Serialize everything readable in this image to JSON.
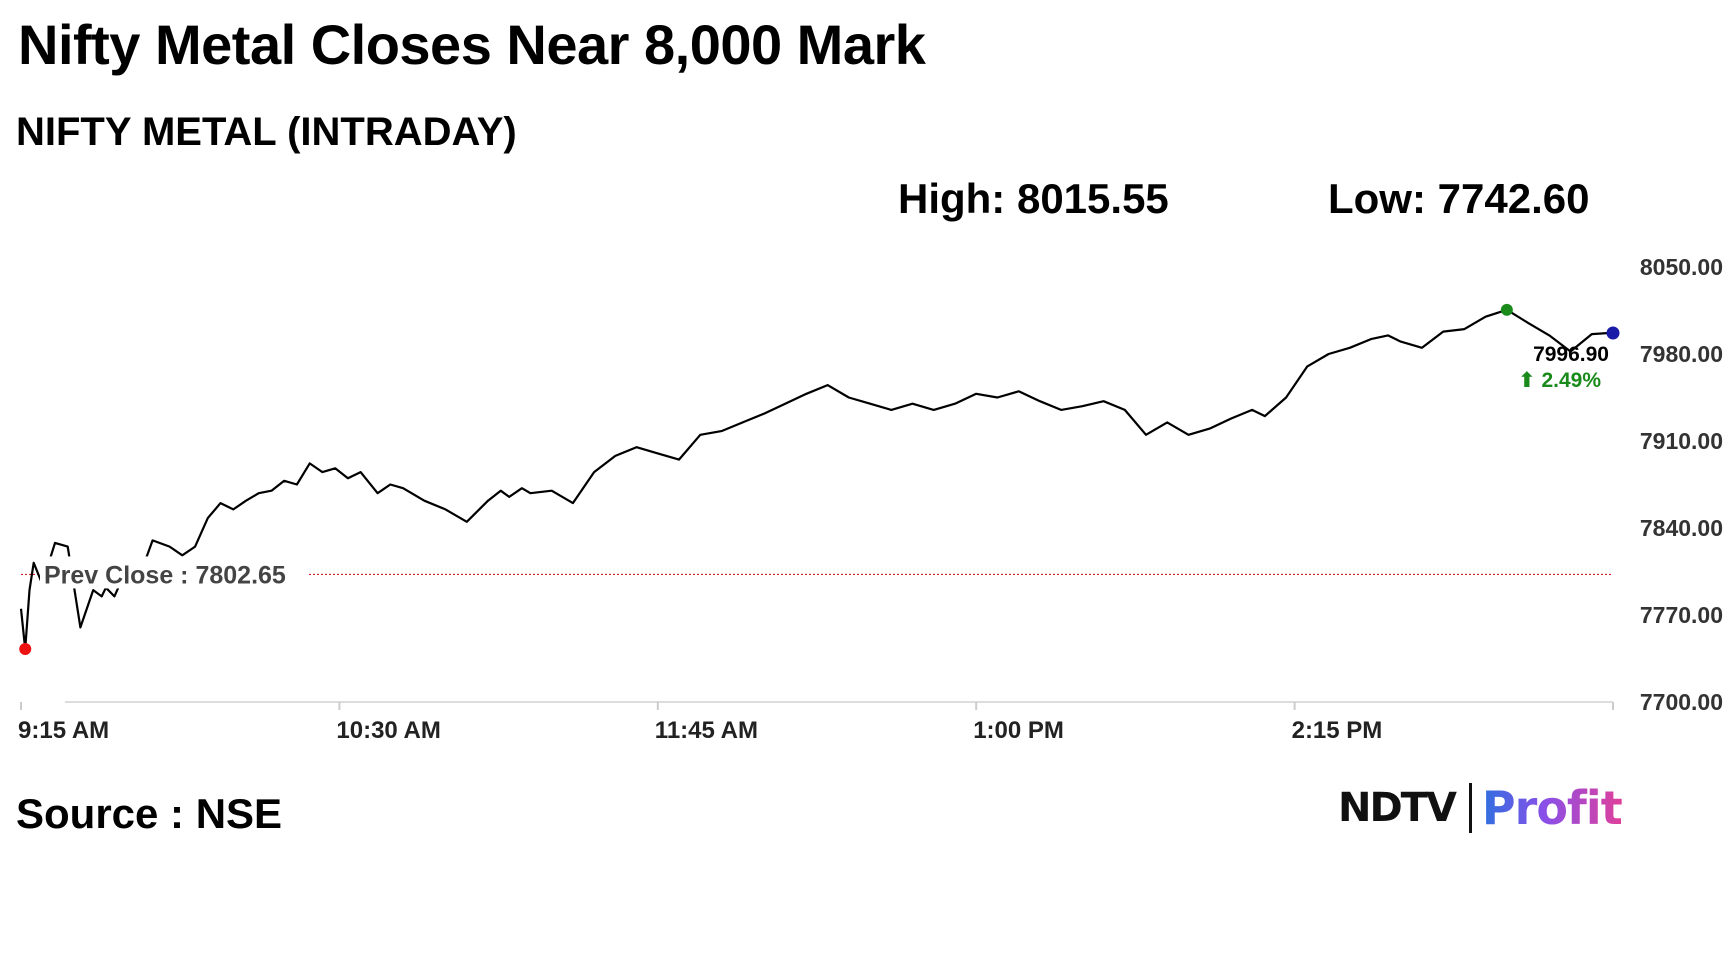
{
  "header": {
    "title": "Nifty Metal Closes Near 8,000 Mark",
    "subtitle": "NIFTY METAL (INTRADAY)",
    "high_label": "High: 8015.55",
    "low_label": "Low: 7742.60"
  },
  "footer": {
    "source": "Source : NSE",
    "logo_left": "NDTV",
    "logo_right": "Profit"
  },
  "colors": {
    "line": "#000000",
    "prev_close": "#cc2222",
    "high_marker": "#1a8a1a",
    "low_marker": "#ee1111",
    "last_marker": "#1a1aa8",
    "change_up": "#1a8a1a"
  },
  "chart_data": {
    "type": "line",
    "title": "NIFTY METAL (INTRADAY)",
    "ylim": [
      7700,
      8050
    ],
    "y_ticks": [
      "8050.00",
      "7980.00",
      "7910.00",
      "7840.00",
      "7770.00",
      "7700.00"
    ],
    "x_ticks": [
      "9:15 AM",
      "10:30 AM",
      "11:45 AM",
      "1:00 PM",
      "2:15 PM"
    ],
    "x_tick_minutes": [
      0,
      75,
      150,
      225,
      300
    ],
    "x_end_minutes": 375,
    "grid": false,
    "prev_close": 7802.65,
    "prev_close_label": "Prev Close : 7802.65",
    "high": 8015.55,
    "low": 7742.6,
    "last_value_label": "7996.90",
    "change_label": "⬆ 2.49%",
    "series": [
      {
        "x": [
          0,
          1,
          2,
          3,
          5,
          8,
          11,
          14,
          17,
          19,
          20,
          22,
          25,
          28,
          31,
          35,
          38,
          41,
          44,
          47,
          50,
          53,
          56,
          59,
          62,
          65,
          68,
          71,
          74,
          77,
          80,
          84,
          87,
          90,
          95,
          100,
          105,
          110,
          113,
          115,
          118,
          120,
          125,
          130,
          135,
          140,
          145,
          150,
          155,
          160,
          165,
          170,
          175,
          180,
          185,
          190,
          195,
          200,
          205,
          210,
          215,
          220,
          225,
          230,
          235,
          240,
          245,
          250,
          255,
          260,
          265,
          270,
          275,
          280,
          285,
          290,
          293,
          298,
          303,
          308,
          313,
          318,
          322,
          325,
          330,
          335,
          340,
          345,
          350,
          355,
          360,
          365,
          370,
          374
        ],
        "y": [
          7775,
          7742.6,
          7790,
          7812,
          7795,
          7828,
          7825,
          7760,
          7790,
          7785,
          7792,
          7785,
          7808,
          7802,
          7830,
          7825,
          7818,
          7825,
          7848,
          7860,
          7855,
          7862,
          7868,
          7870,
          7878,
          7875,
          7892,
          7885,
          7888,
          7880,
          7885,
          7868,
          7875,
          7872,
          7862,
          7855,
          7845,
          7862,
          7870,
          7865,
          7872,
          7868,
          7870,
          7860,
          7885,
          7898,
          7905,
          7900,
          7895,
          7915,
          7918,
          7925,
          7932,
          7940,
          7948,
          7955,
          7945,
          7940,
          7935,
          7940,
          7935,
          7940,
          7948,
          7945,
          7950,
          7942,
          7935,
          7938,
          7942,
          7935,
          7915,
          7925,
          7915,
          7920,
          7928,
          7935,
          7930,
          7945,
          7970,
          7980,
          7985,
          7992,
          7995,
          7990,
          7985,
          7998,
          8000,
          8010,
          8015.55,
          8005,
          7995,
          7982,
          7996,
          7996.9
        ]
      }
    ]
  }
}
